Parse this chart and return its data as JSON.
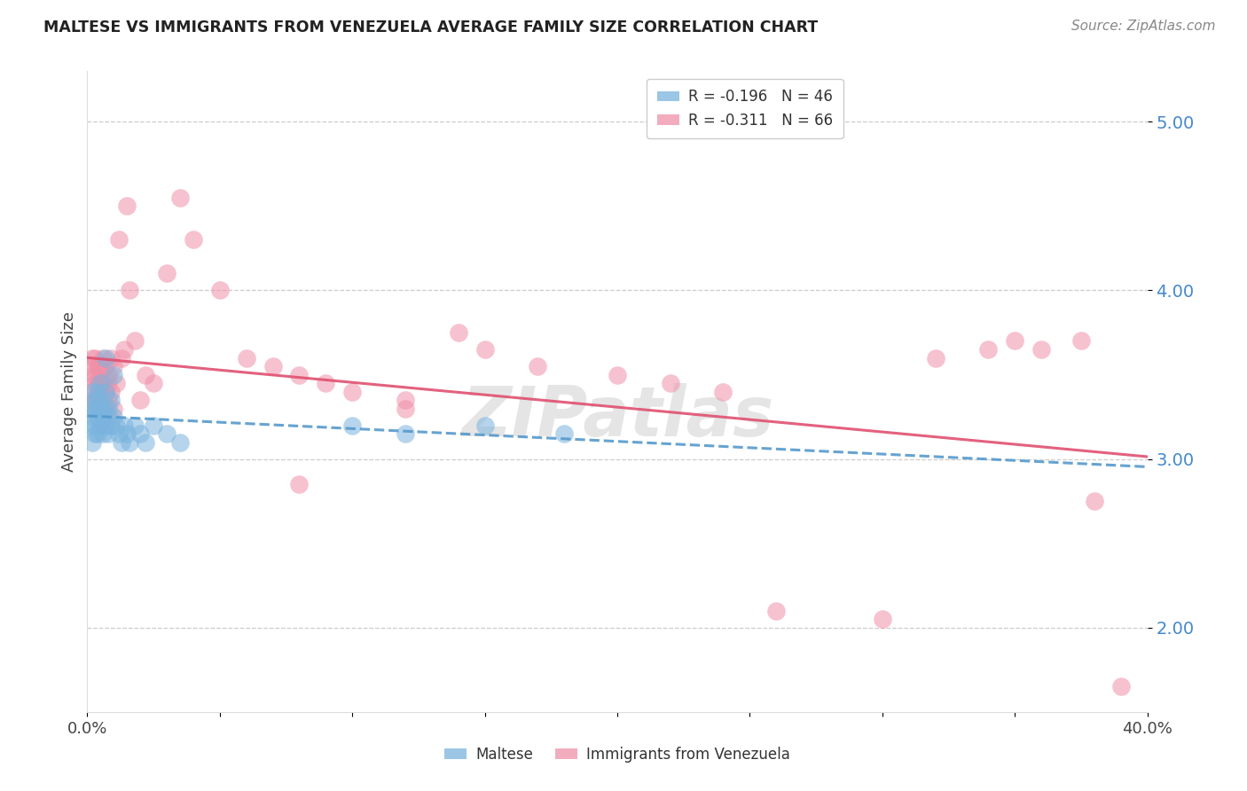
{
  "title": "MALTESE VS IMMIGRANTS FROM VENEZUELA AVERAGE FAMILY SIZE CORRELATION CHART",
  "source": "Source: ZipAtlas.com",
  "ylabel": "Average Family Size",
  "xlim": [
    0.0,
    0.4
  ],
  "ylim": [
    1.5,
    5.3
  ],
  "yticks": [
    2.0,
    3.0,
    4.0,
    5.0
  ],
  "xticks": [
    0.0,
    0.05,
    0.1,
    0.15,
    0.2,
    0.25,
    0.3,
    0.35,
    0.4
  ],
  "xtick_labels": [
    "0.0%",
    "",
    "",
    "",
    "",
    "",
    "",
    "",
    "40.0%"
  ],
  "background_color": "#ffffff",
  "maltese_x": [
    0.001,
    0.001,
    0.002,
    0.002,
    0.002,
    0.003,
    0.003,
    0.003,
    0.003,
    0.004,
    0.004,
    0.004,
    0.004,
    0.005,
    0.005,
    0.005,
    0.005,
    0.006,
    0.006,
    0.006,
    0.007,
    0.007,
    0.007,
    0.008,
    0.008,
    0.008,
    0.009,
    0.009,
    0.01,
    0.01,
    0.011,
    0.012,
    0.013,
    0.014,
    0.015,
    0.016,
    0.018,
    0.02,
    0.022,
    0.025,
    0.03,
    0.035,
    0.1,
    0.12,
    0.15,
    0.18
  ],
  "maltese_y": [
    3.3,
    3.2,
    3.4,
    3.25,
    3.1,
    3.35,
    3.3,
    3.2,
    3.15,
    3.25,
    3.4,
    3.3,
    3.15,
    3.35,
    3.2,
    3.45,
    3.3,
    3.25,
    3.15,
    3.3,
    3.4,
    3.6,
    3.2,
    3.3,
    3.15,
    3.25,
    3.35,
    3.2,
    3.5,
    3.25,
    3.2,
    3.15,
    3.1,
    3.2,
    3.15,
    3.1,
    3.2,
    3.15,
    3.1,
    3.2,
    3.15,
    3.1,
    3.2,
    3.15,
    3.2,
    3.15
  ],
  "venezuela_x": [
    0.001,
    0.001,
    0.002,
    0.002,
    0.002,
    0.003,
    0.003,
    0.003,
    0.003,
    0.004,
    0.004,
    0.004,
    0.005,
    0.005,
    0.005,
    0.005,
    0.006,
    0.006,
    0.006,
    0.007,
    0.007,
    0.007,
    0.008,
    0.008,
    0.008,
    0.009,
    0.009,
    0.01,
    0.01,
    0.011,
    0.012,
    0.013,
    0.014,
    0.015,
    0.016,
    0.018,
    0.02,
    0.022,
    0.025,
    0.03,
    0.035,
    0.04,
    0.05,
    0.06,
    0.07,
    0.08,
    0.09,
    0.1,
    0.12,
    0.14,
    0.15,
    0.17,
    0.08,
    0.12,
    0.2,
    0.22,
    0.24,
    0.26,
    0.3,
    0.32,
    0.34,
    0.35,
    0.36,
    0.375,
    0.38,
    0.39
  ],
  "venezuela_y": [
    3.4,
    3.55,
    3.35,
    3.5,
    3.6,
    3.45,
    3.3,
    3.6,
    3.5,
    3.35,
    3.55,
    3.45,
    3.4,
    3.55,
    3.3,
    3.5,
    3.45,
    3.6,
    3.35,
    3.55,
    3.4,
    3.3,
    3.5,
    3.45,
    3.35,
    3.6,
    3.4,
    3.55,
    3.3,
    3.45,
    4.3,
    3.6,
    3.65,
    4.5,
    4.0,
    3.7,
    3.35,
    3.5,
    3.45,
    4.1,
    4.55,
    4.3,
    4.0,
    3.6,
    3.55,
    3.5,
    3.45,
    3.4,
    3.35,
    3.75,
    3.65,
    3.55,
    2.85,
    3.3,
    3.5,
    3.45,
    3.4,
    2.1,
    2.05,
    3.6,
    3.65,
    3.7,
    3.65,
    3.7,
    2.75,
    1.65
  ],
  "maltese_color": "#7ab4de",
  "venezuela_color": "#f090a8",
  "maltese_line_color": "#5599cc",
  "venezuela_line_color": "#e05070",
  "grid_color": "#cccccc",
  "ytick_color": "#4488cc",
  "legend_label_maltese": "R = -0.196   N = 46",
  "legend_label_venezuela": "R = -0.311   N = 66",
  "legend_label_bottom_maltese": "Maltese",
  "legend_label_bottom_venezuela": "Immigrants from Venezuela"
}
